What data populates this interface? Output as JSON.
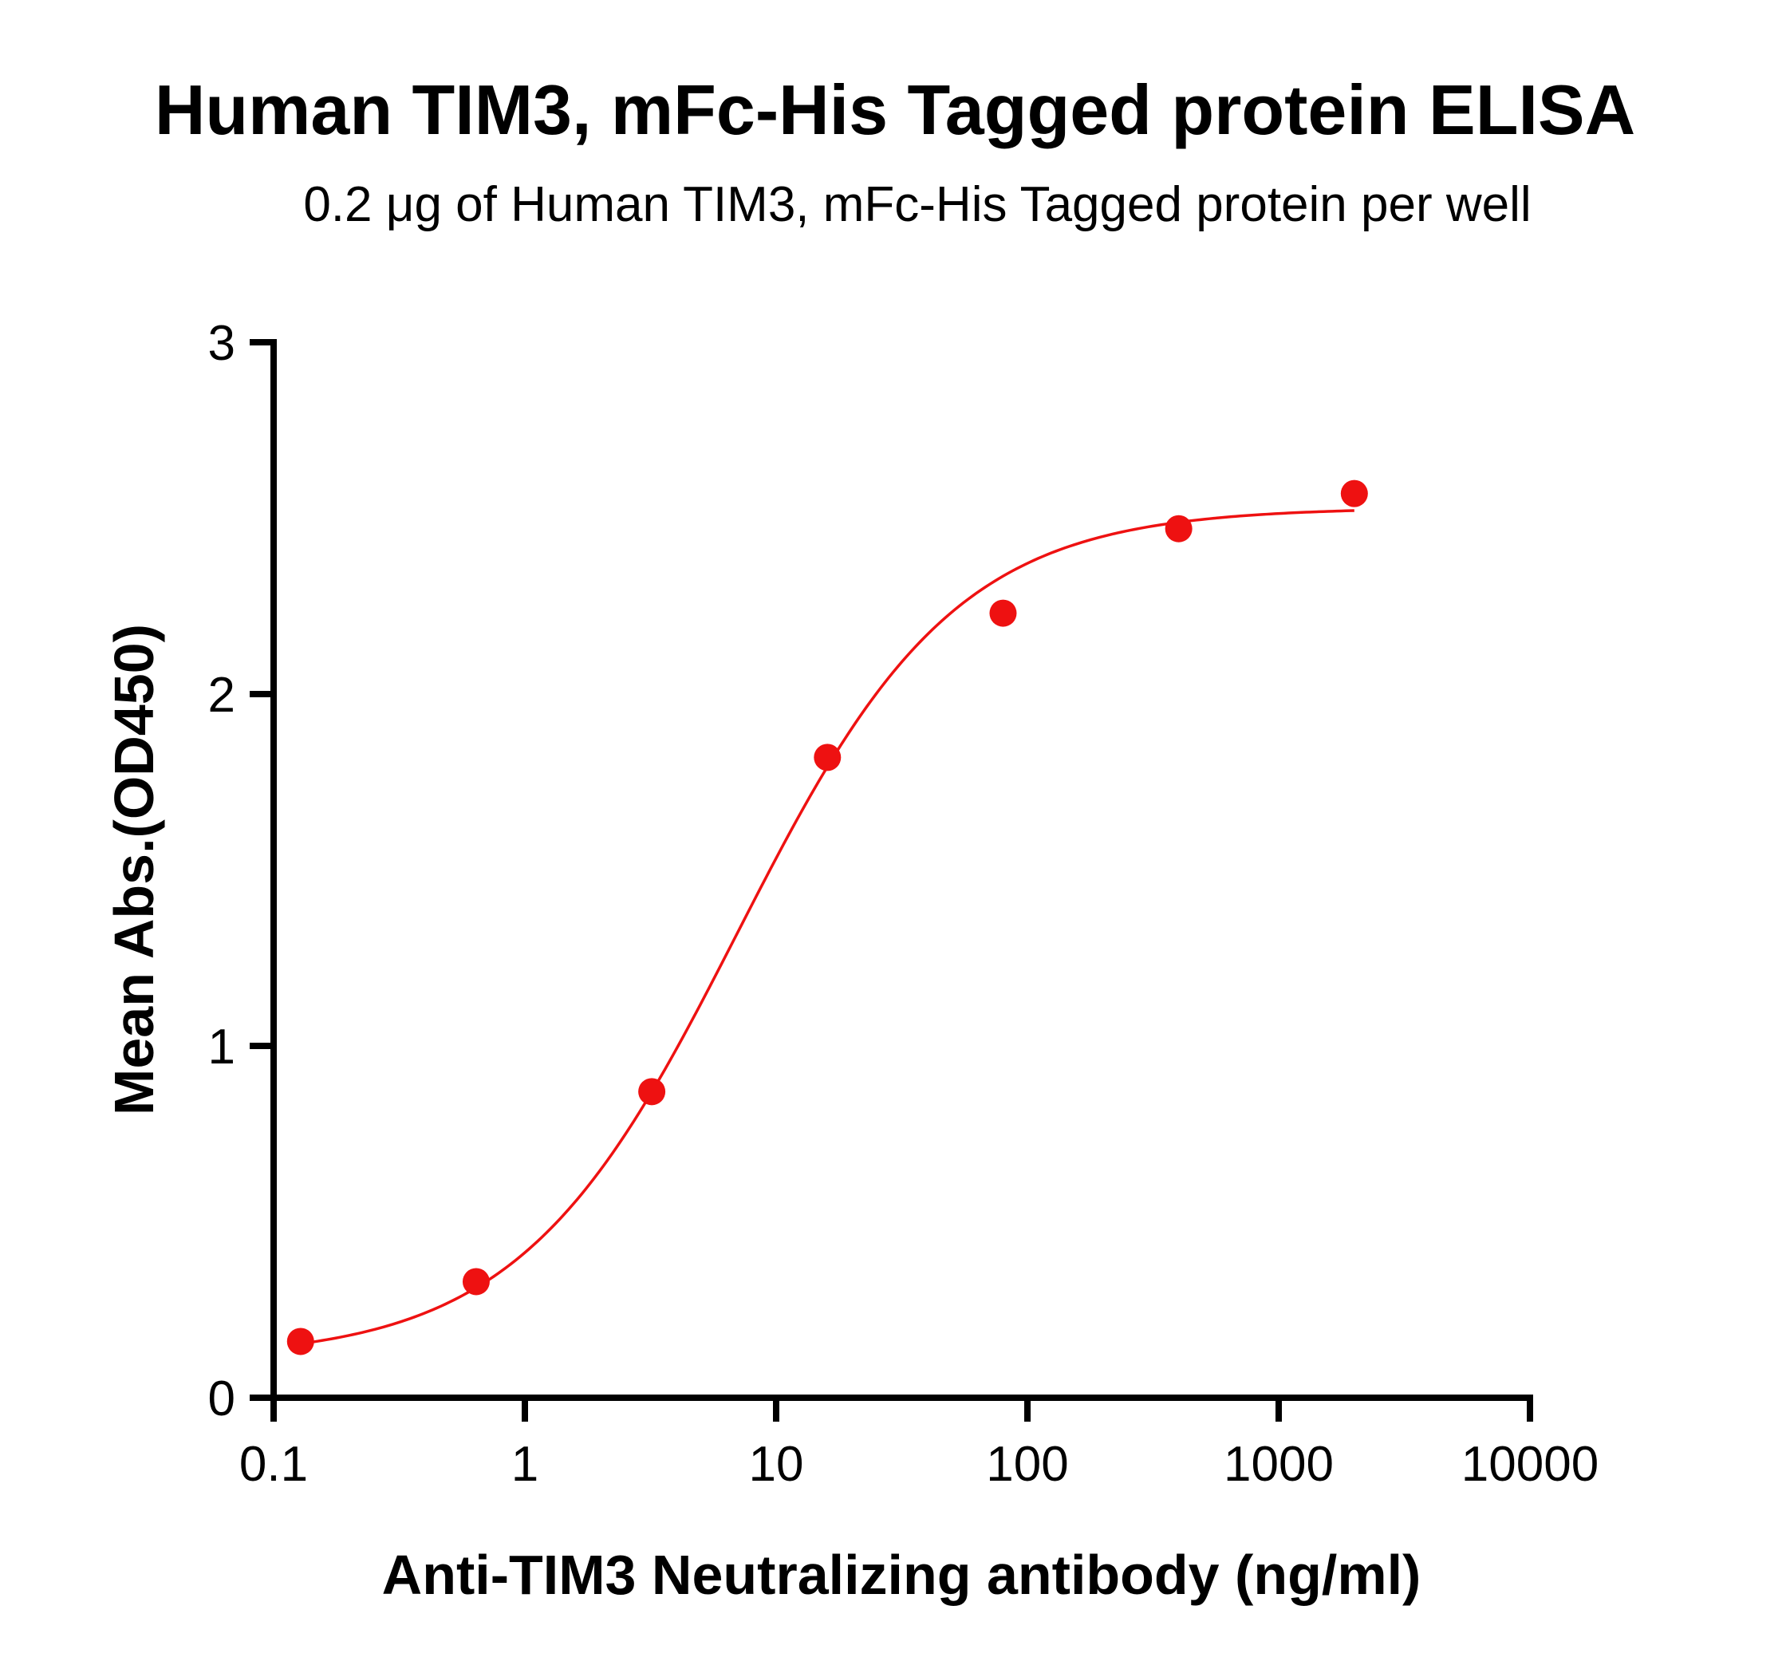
{
  "chart_data": {
    "type": "scatter",
    "title": "Human TIM3, mFc-His Tagged protein ELISA",
    "subtitle": "0.2 μg of Human TIM3, mFc-His Tagged protein per well",
    "xlabel": "Anti-TIM3 Neutralizing antibody (ng/ml)",
    "ylabel": "Mean Abs.(OD450)",
    "x_scale": "log",
    "xlim": [
      0.1,
      10000
    ],
    "ylim": [
      0,
      3
    ],
    "x_ticks": [
      0.1,
      1,
      10,
      100,
      1000,
      10000
    ],
    "x_tick_labels": [
      "0.1",
      "1",
      "10",
      "100",
      "1000",
      "10000"
    ],
    "y_ticks": [
      0,
      1,
      2,
      3
    ],
    "y_tick_labels": [
      "0",
      "1",
      "2",
      "3"
    ],
    "grid": false,
    "series": [
      {
        "x": [
          0.128,
          0.64,
          3.2,
          16,
          80,
          400,
          2000
        ],
        "y": [
          0.16,
          0.33,
          0.87,
          1.82,
          2.23,
          2.47,
          2.57
        ],
        "color": "#ee1111",
        "marker": "circle",
        "fit": {
          "type": "4PL",
          "bottom": 0.11,
          "top": 2.53,
          "ec50": 7.0,
          "hill": 1.0
        }
      }
    ]
  }
}
